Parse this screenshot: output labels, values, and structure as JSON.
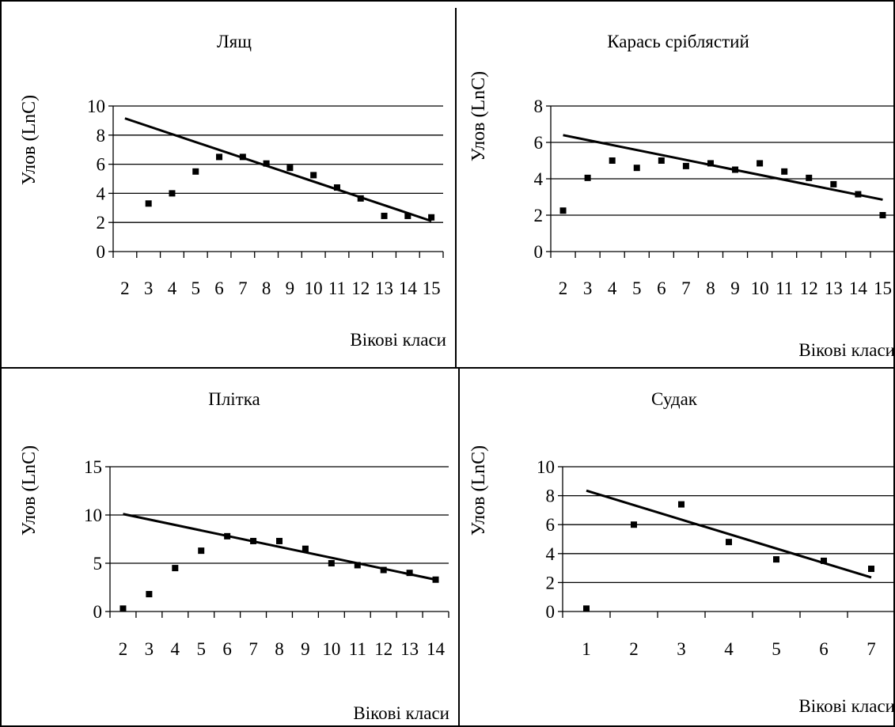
{
  "chart_data": [
    {
      "type": "scatter",
      "title": "Лящ",
      "ylabel": "Улов (LnC)",
      "xlabel": "Вікові класи",
      "ylim": [
        0,
        10
      ],
      "yticks": [
        "0",
        "2",
        "4",
        "6",
        "8",
        "10"
      ],
      "categories": [
        "2",
        "3",
        "4",
        "5",
        "6",
        "7",
        "8",
        "9",
        "10",
        "11",
        "12",
        "13",
        "14",
        "15"
      ],
      "values": [
        null,
        3.3,
        4.0,
        5.5,
        6.5,
        6.5,
        6.05,
        5.75,
        5.25,
        4.4,
        3.65,
        2.45,
        2.45,
        2.35
      ],
      "trendline": [
        9.15,
        2.1
      ],
      "grid": true
    },
    {
      "type": "scatter",
      "title": "Карась сріблястий",
      "ylabel": "Улов (LnC)",
      "xlabel": "Вікові класи",
      "ylim": [
        0,
        8
      ],
      "yticks": [
        "0",
        "2",
        "4",
        "6",
        "8"
      ],
      "categories": [
        "2",
        "3",
        "4",
        "5",
        "6",
        "7",
        "8",
        "9",
        "10",
        "11",
        "12",
        "13",
        "14",
        "15"
      ],
      "values": [
        2.25,
        4.05,
        5.0,
        4.6,
        5.0,
        4.7,
        4.85,
        4.5,
        4.85,
        4.4,
        4.05,
        3.7,
        3.15,
        2.0
      ],
      "trendline": [
        6.4,
        2.85
      ],
      "grid": true
    },
    {
      "type": "scatter",
      "title": "Плітка",
      "ylabel": "Улов (LnC)",
      "xlabel": "Вікові класи",
      "ylim": [
        0,
        15
      ],
      "yticks": [
        "0",
        "5",
        "10",
        "15"
      ],
      "categories": [
        "2",
        "3",
        "4",
        "5",
        "6",
        "7",
        "8",
        "9",
        "10",
        "11",
        "12",
        "13",
        "14"
      ],
      "values": [
        0.3,
        1.8,
        4.5,
        6.3,
        7.8,
        7.3,
        7.3,
        6.5,
        5.0,
        4.8,
        4.3,
        4.0,
        3.3
      ],
      "trendline": [
        10.1,
        3.3
      ],
      "grid": true
    },
    {
      "type": "scatter",
      "title": "Судак",
      "ylabel": "Улов (LnC)",
      "xlabel": "Вікові класи",
      "ylim": [
        0,
        10
      ],
      "yticks": [
        "0",
        "2",
        "4",
        "6",
        "8",
        "10"
      ],
      "categories": [
        "1",
        "2",
        "3",
        "4",
        "5",
        "6",
        "7"
      ],
      "values": [
        0.2,
        6.0,
        7.4,
        4.8,
        3.6,
        3.5,
        2.95
      ],
      "trendline": [
        8.35,
        2.35
      ],
      "grid": true
    }
  ]
}
